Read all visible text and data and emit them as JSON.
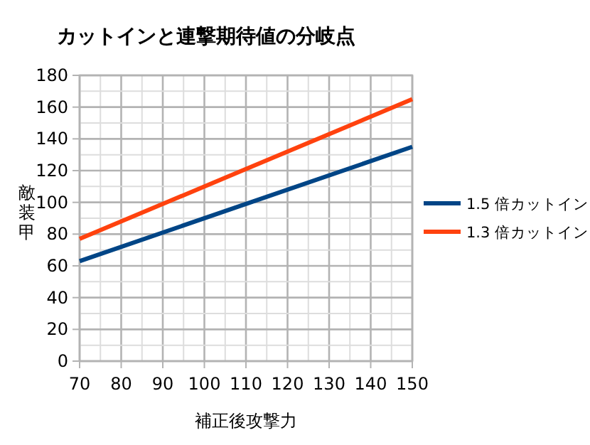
{
  "chart_data": {
    "type": "line",
    "title": "カットインと連撃期待値の分岐点",
    "xlabel": "補正後攻撃力",
    "ylabel": "敵装甲",
    "x": [
      70,
      110,
      150
    ],
    "series": [
      {
        "name": "1.5 倍カットイン",
        "color": "#004586",
        "values": [
          63,
          99,
          135
        ]
      },
      {
        "name": "1.3 倍カットイン",
        "color": "#ff420e",
        "values": [
          77,
          121,
          165
        ]
      }
    ],
    "xlim": [
      70,
      150
    ],
    "xticks": [
      70,
      80,
      90,
      100,
      110,
      120,
      130,
      140,
      150
    ],
    "ylim": [
      0,
      180
    ],
    "yticks": [
      0,
      20,
      40,
      60,
      80,
      100,
      120,
      140,
      160,
      180
    ],
    "grid": true,
    "legend": "right",
    "marker": "none",
    "line_style": "solid"
  }
}
